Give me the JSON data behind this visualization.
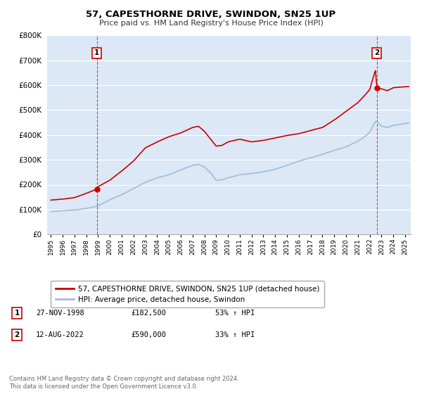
{
  "title": "57, CAPESTHORNE DRIVE, SWINDON, SN25 1UP",
  "subtitle": "Price paid vs. HM Land Registry's House Price Index (HPI)",
  "ylim": [
    0,
    800000
  ],
  "xlim_start": 1994.7,
  "xlim_end": 2025.5,
  "background_color": "#ffffff",
  "plot_bg_color": "#dce8f5",
  "grid_color": "#ffffff",
  "red_line_color": "#cc0000",
  "blue_line_color": "#a0bcd8",
  "marker_color": "#cc0000",
  "dashed_line_color": "#cc0000",
  "sale1_x": 1998.9,
  "sale1_y": 182500,
  "sale2_x": 2022.6,
  "sale2_y": 590000,
  "legend_entries": [
    "57, CAPESTHORNE DRIVE, SWINDON, SN25 1UP (detached house)",
    "HPI: Average price, detached house, Swindon"
  ],
  "annotation1_label": "1",
  "annotation1_date": "27-NOV-1998",
  "annotation1_price": "£182,500",
  "annotation1_pct": "53% ↑ HPI",
  "annotation2_label": "2",
  "annotation2_date": "12-AUG-2022",
  "annotation2_price": "£590,000",
  "annotation2_pct": "33% ↑ HPI",
  "footnote": "Contains HM Land Registry data © Crown copyright and database right 2024.\nThis data is licensed under the Open Government Licence v3.0.",
  "yticks": [
    0,
    100000,
    200000,
    300000,
    400000,
    500000,
    600000,
    700000,
    800000
  ],
  "ytick_labels": [
    "£0",
    "£100K",
    "£200K",
    "£300K",
    "£400K",
    "£500K",
    "£600K",
    "£700K",
    "£800K"
  ]
}
